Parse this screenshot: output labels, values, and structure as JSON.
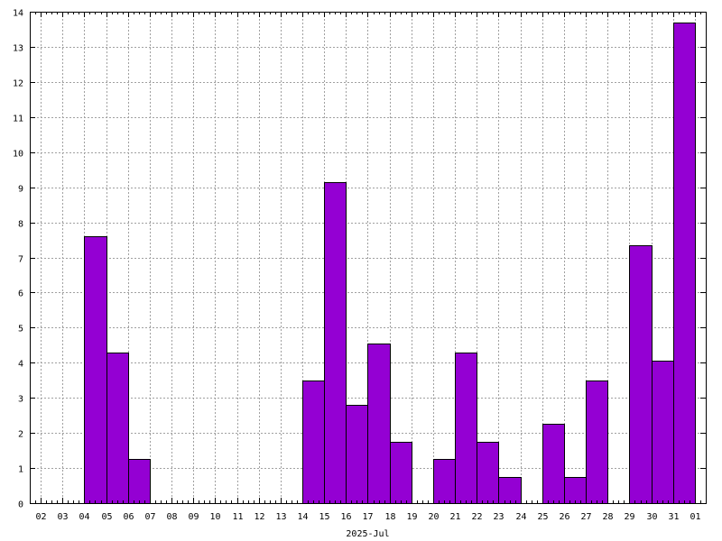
{
  "chart_data": {
    "type": "bar",
    "title": "",
    "xlabel": "2025-Jul",
    "ylabel": "",
    "ylim": [
      0,
      14
    ],
    "yticks": [
      0,
      1,
      2,
      3,
      4,
      5,
      6,
      7,
      8,
      9,
      10,
      11,
      12,
      13,
      14
    ],
    "grid": true,
    "bar_color": "#9400d3",
    "x_tick_labels": [
      "02",
      "03",
      "04",
      "05",
      "06",
      "07",
      "08",
      "09",
      "10",
      "11",
      "12",
      "13",
      "14",
      "15",
      "16",
      "17",
      "18",
      "19",
      "20",
      "21",
      "22",
      "23",
      "24",
      "25",
      "26",
      "27",
      "28",
      "29",
      "30",
      "31",
      "01"
    ],
    "bars": [
      {
        "start": "04",
        "value": 7.6
      },
      {
        "start": "05",
        "value": 4.3
      },
      {
        "start": "06",
        "value": 1.25
      },
      {
        "start": "14",
        "value": 3.5
      },
      {
        "start": "15",
        "value": 9.15
      },
      {
        "start": "16",
        "value": 2.8
      },
      {
        "start": "17",
        "value": 4.55
      },
      {
        "start": "18",
        "value": 1.75
      },
      {
        "start": "20",
        "value": 1.25
      },
      {
        "start": "21",
        "value": 4.3
      },
      {
        "start": "22",
        "value": 1.75
      },
      {
        "start": "23",
        "value": 0.75
      },
      {
        "start": "25",
        "value": 2.25
      },
      {
        "start": "26",
        "value": 0.75
      },
      {
        "start": "27",
        "value": 3.5
      },
      {
        "start": "29",
        "value": 7.35
      },
      {
        "start": "30",
        "value": 4.05
      },
      {
        "start": "31",
        "value": 13.7
      }
    ]
  }
}
